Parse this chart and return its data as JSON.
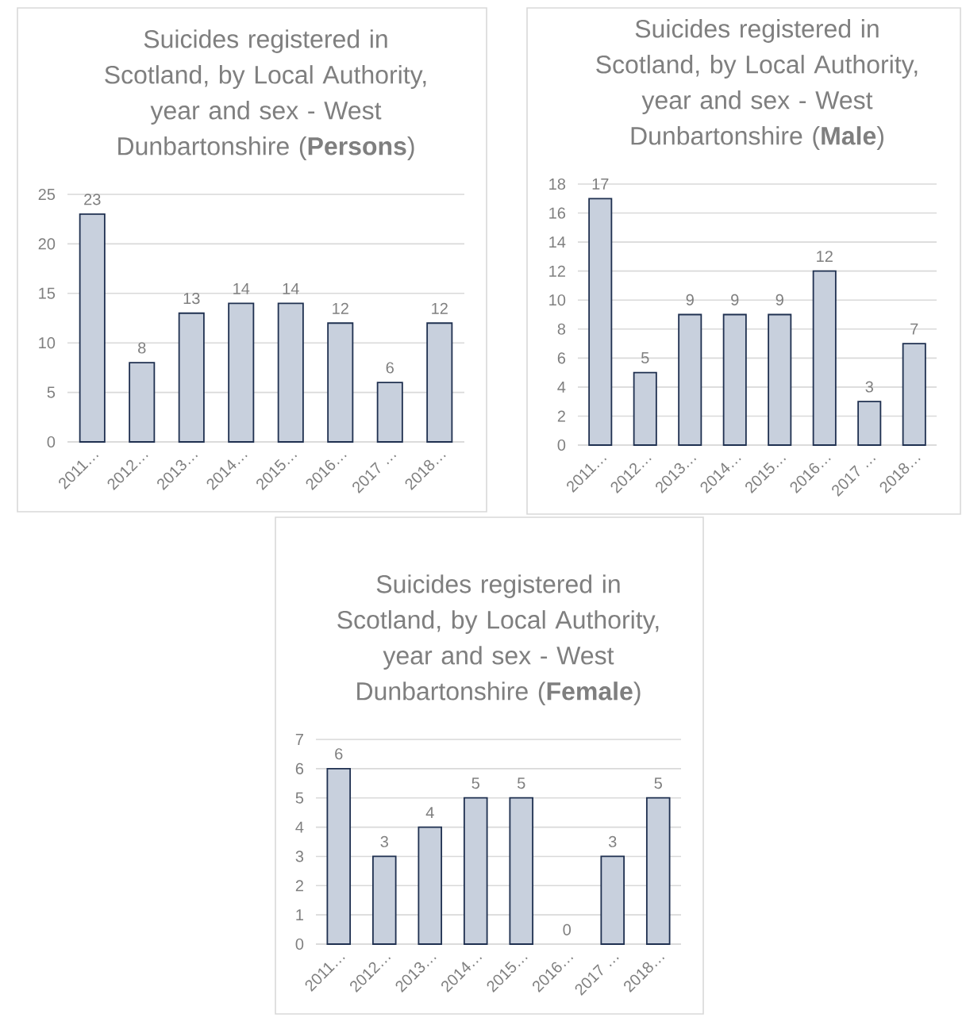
{
  "chart_data": [
    {
      "type": "bar",
      "title": "Suicides registered in Scotland, by Local Authority, year and sex - West Dunbartonshire (**Persons**)",
      "categories": [
        "2011…",
        "2012…",
        "2013…",
        "2014…",
        "2015…",
        "2016…",
        "2017 …",
        "2018…"
      ],
      "values": [
        23,
        8,
        13,
        14,
        14,
        12,
        6,
        12
      ],
      "color": "#c8d0dd",
      "ylim": [
        0,
        25
      ],
      "yticks": [
        0,
        5,
        10,
        15,
        20,
        25
      ],
      "grid": "y",
      "data_labels": true
    },
    {
      "type": "bar",
      "title": "Suicides registered in Scotland, by Local Authority, year and sex - West Dunbartonshire (**Male**)",
      "categories": [
        "2011…",
        "2012…",
        "2013…",
        "2014…",
        "2015…",
        "2016…",
        "2017 …",
        "2018…"
      ],
      "values": [
        17,
        5,
        9,
        9,
        9,
        12,
        3,
        7
      ],
      "color": "#c8d0dd",
      "ylim": [
        0,
        18
      ],
      "yticks": [
        0,
        2,
        4,
        6,
        8,
        10,
        12,
        14,
        16,
        18
      ],
      "grid": "y",
      "data_labels": true
    },
    {
      "type": "bar",
      "title": "Suicides registered in Scotland, by Local Authority, year and sex - West Dunbartonshire (**Female**)",
      "categories": [
        "2011…",
        "2012…",
        "2013…",
        "2014…",
        "2015…",
        "2016…",
        "2017 …",
        "2018…"
      ],
      "values": [
        6,
        3,
        4,
        5,
        5,
        0,
        3,
        5
      ],
      "color": "#c8d0dd",
      "ylim": [
        0,
        7
      ],
      "yticks": [
        0,
        1,
        2,
        3,
        4,
        5,
        6,
        7
      ],
      "grid": "y",
      "data_labels": true
    }
  ]
}
